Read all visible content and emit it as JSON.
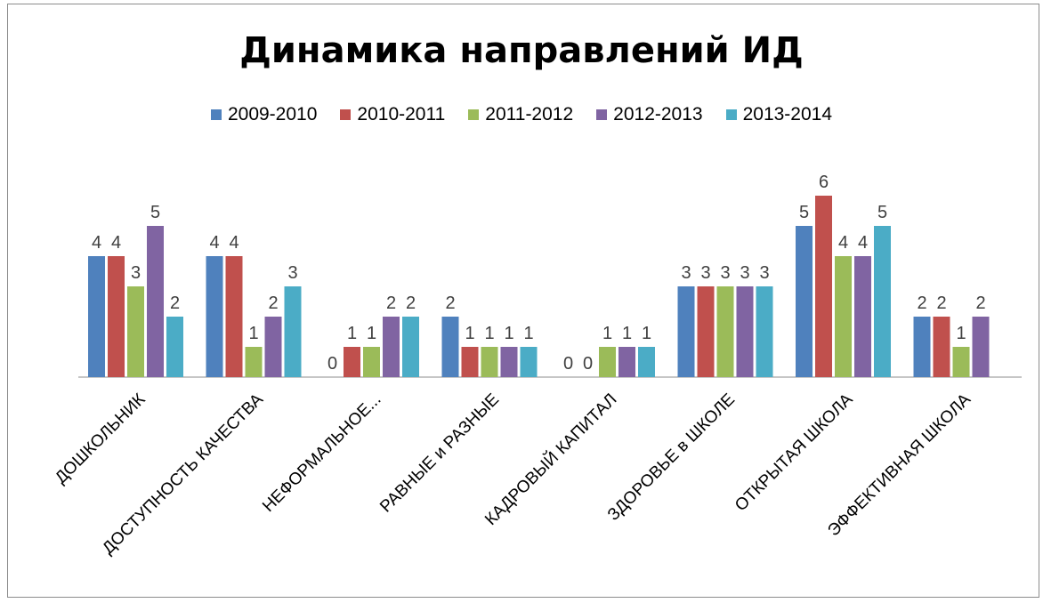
{
  "chart_data": {
    "type": "bar",
    "title": "Динамика направлений ИД",
    "categories": [
      "ДОШКОЛЬНИК",
      "ДОСТУПНОСТЬ КАЧЕСТВА",
      "НЕФОРМАЛЬНОЕ...",
      "РАВНЫЕ и РАЗНЫЕ",
      "КАДРОВЫЙ КАПИТАЛ",
      "ЗДОРОВЬЕ в ШКОЛЕ",
      "ОТКРЫТАЯ ШКОЛА",
      "ЭФФЕКТИВНАЯ ШКОЛА"
    ],
    "series": [
      {
        "name": "2009-2010",
        "color": "#4f81bd",
        "values": [
          4,
          4,
          0,
          2,
          0,
          3,
          5,
          2
        ]
      },
      {
        "name": "2010-2011",
        "color": "#c0504d",
        "values": [
          4,
          4,
          1,
          1,
          0,
          3,
          6,
          2
        ]
      },
      {
        "name": "2011-2012",
        "color": "#9bbb59",
        "values": [
          3,
          1,
          1,
          1,
          1,
          3,
          4,
          1
        ]
      },
      {
        "name": "2012-2013",
        "color": "#8064a2",
        "values": [
          5,
          2,
          2,
          1,
          1,
          3,
          4,
          2
        ]
      },
      {
        "name": "2013-2014",
        "color": "#4bacc6",
        "values": [
          2,
          3,
          2,
          1,
          1,
          3,
          5,
          null
        ]
      }
    ],
    "ylim": [
      0,
      6
    ],
    "grid": false,
    "legend_position": "top",
    "data_labels": true,
    "xlabel": "",
    "ylabel": ""
  }
}
